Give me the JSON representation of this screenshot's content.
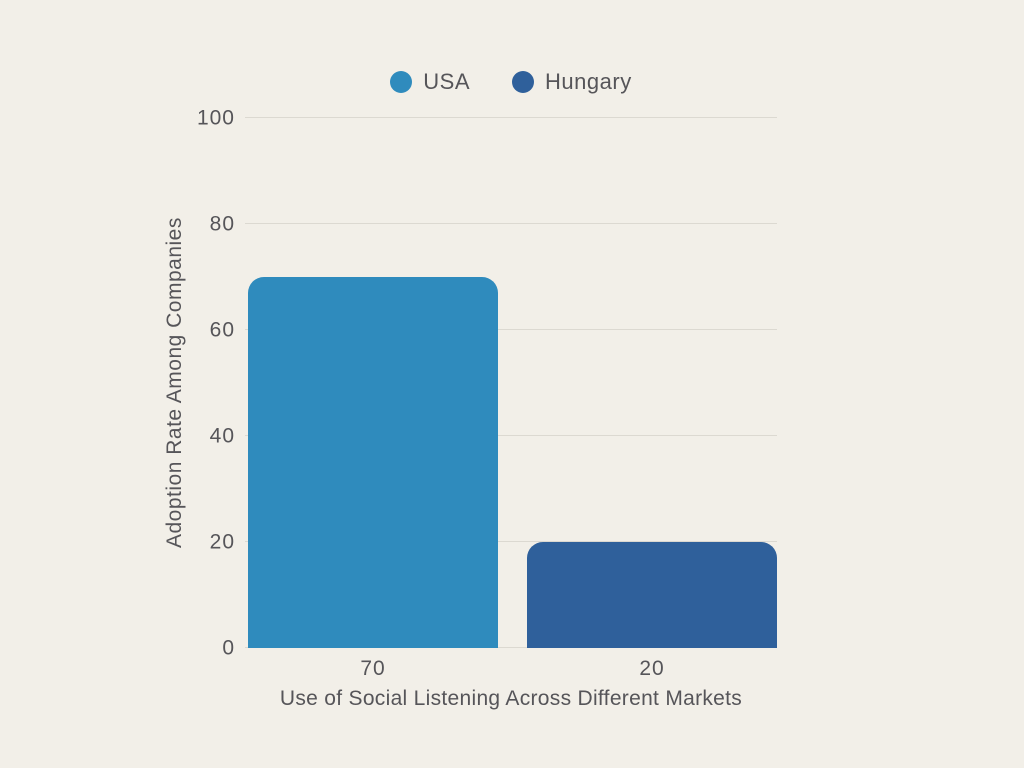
{
  "chart_data": {
    "type": "bar",
    "title": "",
    "xlabel": "Use of Social Listening Across Different Markets",
    "ylabel": "Adoption Rate Among Companies",
    "ylim": [
      0,
      100
    ],
    "yticks": [
      0,
      20,
      40,
      60,
      80,
      100
    ],
    "grid": true,
    "legend_position": "top",
    "series": [
      {
        "name": "USA",
        "value": 70,
        "x_tick_label": "70",
        "color": "#2f8bbd"
      },
      {
        "name": "Hungary",
        "value": 20,
        "x_tick_label": "20",
        "color": "#2f609b"
      }
    ]
  },
  "colors": {
    "background": "#f2efe8",
    "text": "#565559",
    "gridline": "#dcd9d1"
  }
}
